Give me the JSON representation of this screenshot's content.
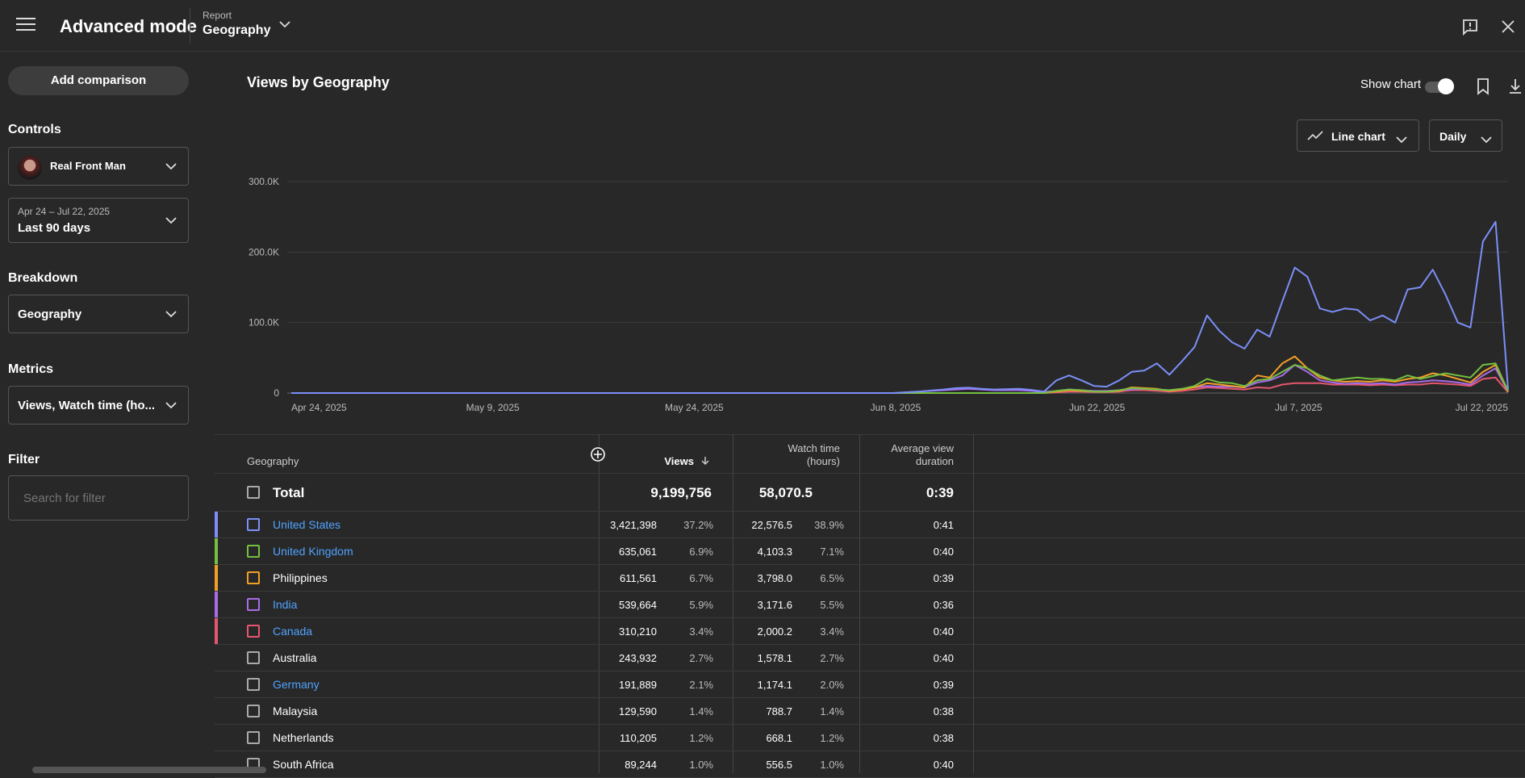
{
  "app": {
    "title": "Advanced mode",
    "report_label": "Report",
    "report_value": "Geography"
  },
  "sidebar": {
    "add_comparison": "Add comparison",
    "controls_heading": "Controls",
    "channel": "Real Front Man",
    "date_range_sub": "Apr 24 – Jul 22, 2025",
    "date_range": "Last 90 days",
    "breakdown_heading": "Breakdown",
    "breakdown": "Geography",
    "metrics_heading": "Metrics",
    "metrics": "Views, Watch time (ho...",
    "filter_heading": "Filter",
    "filter_placeholder": "Search for filter"
  },
  "chart_header": {
    "title": "Views by Geography",
    "show_chart": "Show chart",
    "chart_type": "Line chart",
    "interval": "Daily"
  },
  "chart_data": {
    "type": "line",
    "x_labels": [
      "Apr 24, 2025",
      "May 9, 2025",
      "May 24, 2025",
      "Jun 8, 2025",
      "Jun 22, 2025",
      "Jul 7, 2025",
      "Jul 22, 2025"
    ],
    "y_ticks": [
      "0",
      "100.0K",
      "200.0K",
      "300.0K"
    ],
    "ylim": [
      0,
      300000
    ],
    "series": [
      {
        "name": "United States",
        "color": "#7b8ff7",
        "values": [
          0,
          0,
          0,
          0,
          0,
          0,
          0,
          0,
          0,
          0,
          0,
          0,
          0,
          0,
          0,
          0,
          0,
          0,
          0,
          0,
          0,
          0,
          0,
          0,
          0,
          0,
          0,
          0,
          0,
          0,
          0,
          0,
          0,
          0,
          0,
          0,
          0,
          0,
          0,
          0,
          0,
          0,
          0,
          0,
          0,
          0,
          0,
          0,
          0,
          1000,
          2000,
          3500,
          5000,
          7000,
          7500,
          6000,
          5000,
          5500,
          6000,
          4500,
          2000,
          18000,
          25000,
          18000,
          10000,
          9000,
          18000,
          30000,
          32000,
          42000,
          26000,
          45000,
          65000,
          110000,
          88000,
          72000,
          63000,
          90000,
          80000,
          130000,
          178000,
          165000,
          120000,
          115000,
          120000,
          118000,
          103000,
          110000,
          100000,
          147000,
          150000,
          175000,
          140000,
          100000,
          93000,
          215000,
          243000,
          5000
        ]
      },
      {
        "name": "United Kingdom",
        "color": "#74c041",
        "values": [
          0,
          0,
          0,
          0,
          0,
          0,
          0,
          0,
          0,
          0,
          0,
          0,
          0,
          0,
          0,
          0,
          0,
          0,
          0,
          0,
          0,
          0,
          0,
          0,
          0,
          0,
          0,
          0,
          0,
          0,
          0,
          0,
          0,
          0,
          0,
          0,
          0,
          0,
          0,
          0,
          0,
          0,
          0,
          0,
          0,
          0,
          0,
          0,
          0,
          0,
          0,
          0,
          0,
          0,
          0,
          0,
          0,
          0,
          0,
          0,
          0,
          3000,
          5000,
          4000,
          2000,
          2000,
          4000,
          7000,
          6000,
          5000,
          4000,
          6000,
          10000,
          20000,
          15000,
          14000,
          10000,
          18000,
          20000,
          30000,
          40000,
          35000,
          25000,
          18000,
          20000,
          22000,
          20000,
          20000,
          18000,
          25000,
          20000,
          24000,
          28000,
          25000,
          22000,
          40000,
          42000,
          3000
        ]
      },
      {
        "name": "Philippines",
        "color": "#f29f26",
        "values": [
          0,
          0,
          0,
          0,
          0,
          0,
          0,
          0,
          0,
          0,
          0,
          0,
          0,
          0,
          0,
          0,
          0,
          0,
          0,
          0,
          0,
          0,
          0,
          0,
          0,
          0,
          0,
          0,
          0,
          0,
          0,
          0,
          0,
          0,
          0,
          0,
          0,
          0,
          0,
          0,
          0,
          0,
          0,
          0,
          0,
          0,
          0,
          0,
          0,
          0,
          0,
          0,
          0,
          0,
          0,
          0,
          0,
          0,
          0,
          0,
          0,
          2000,
          4000,
          3000,
          2000,
          2000,
          3000,
          8000,
          7000,
          6000,
          3000,
          5000,
          8000,
          14000,
          12000,
          10000,
          8000,
          25000,
          22000,
          42000,
          52000,
          35000,
          22000,
          18000,
          16000,
          17000,
          16000,
          18000,
          16000,
          20000,
          22000,
          28000,
          25000,
          20000,
          15000,
          30000,
          40000,
          2000
        ]
      },
      {
        "name": "India",
        "color": "#a86ce8",
        "values": [
          0,
          0,
          0,
          0,
          0,
          0,
          0,
          0,
          0,
          0,
          0,
          0,
          0,
          0,
          0,
          0,
          0,
          0,
          0,
          0,
          0,
          0,
          0,
          0,
          0,
          0,
          0,
          0,
          0,
          0,
          0,
          0,
          0,
          0,
          0,
          0,
          0,
          0,
          0,
          0,
          0,
          0,
          0,
          0,
          0,
          0,
          0,
          0,
          0,
          1000,
          2000,
          3000,
          4000,
          5000,
          6000,
          5000,
          4000,
          4000,
          4000,
          3000,
          1500,
          3000,
          5000,
          4000,
          3000,
          3000,
          4000,
          5000,
          6000,
          5000,
          4000,
          6000,
          8000,
          10000,
          9000,
          9000,
          8000,
          15000,
          18000,
          25000,
          40000,
          30000,
          18000,
          15000,
          13000,
          14000,
          13000,
          14000,
          12000,
          15000,
          16000,
          18000,
          17000,
          15000,
          12000,
          25000,
          35000,
          2000
        ]
      },
      {
        "name": "Canada",
        "color": "#e5566f",
        "values": [
          0,
          0,
          0,
          0,
          0,
          0,
          0,
          0,
          0,
          0,
          0,
          0,
          0,
          0,
          0,
          0,
          0,
          0,
          0,
          0,
          0,
          0,
          0,
          0,
          0,
          0,
          0,
          0,
          0,
          0,
          0,
          0,
          0,
          0,
          0,
          0,
          0,
          0,
          0,
          0,
          0,
          0,
          0,
          0,
          0,
          0,
          0,
          0,
          0,
          0,
          0,
          0,
          0,
          0,
          0,
          0,
          0,
          0,
          0,
          0,
          0,
          1000,
          2000,
          2000,
          1500,
          1500,
          2000,
          4000,
          4000,
          3000,
          2000,
          3000,
          5000,
          8000,
          7000,
          6000,
          5000,
          8000,
          7000,
          12000,
          14000,
          14000,
          14000,
          12000,
          12000,
          12000,
          11000,
          12000,
          11000,
          12000,
          12000,
          14000,
          13000,
          12000,
          10000,
          20000,
          22000,
          1000
        ]
      }
    ]
  },
  "table": {
    "headers": {
      "geography": "Geography",
      "views": "Views",
      "watch_time_1": "Watch time",
      "watch_time_2": "(hours)",
      "avg_1": "Average view",
      "avg_2": "duration"
    },
    "total": {
      "label": "Total",
      "views": "9,199,756",
      "watch_time": "58,070.5",
      "avg": "0:39"
    },
    "rows": [
      {
        "name": "United States",
        "views": "3,421,398",
        "views_pct": "37.2%",
        "watch": "22,576.5",
        "watch_pct": "38.9%",
        "avg": "0:41",
        "color": "#7b8ff7",
        "link": true
      },
      {
        "name": "United Kingdom",
        "views": "635,061",
        "views_pct": "6.9%",
        "watch": "4,103.3",
        "watch_pct": "7.1%",
        "avg": "0:40",
        "color": "#74c041",
        "link": true
      },
      {
        "name": "Philippines",
        "views": "611,561",
        "views_pct": "6.7%",
        "watch": "3,798.0",
        "watch_pct": "6.5%",
        "avg": "0:39",
        "color": "#f29f26",
        "link": false
      },
      {
        "name": "India",
        "views": "539,664",
        "views_pct": "5.9%",
        "watch": "3,171.6",
        "watch_pct": "5.5%",
        "avg": "0:36",
        "color": "#a86ce8",
        "link": true
      },
      {
        "name": "Canada",
        "views": "310,210",
        "views_pct": "3.4%",
        "watch": "2,000.2",
        "watch_pct": "3.4%",
        "avg": "0:40",
        "color": "#e5566f",
        "link": true
      },
      {
        "name": "Australia",
        "views": "243,932",
        "views_pct": "2.7%",
        "watch": "1,578.1",
        "watch_pct": "2.7%",
        "avg": "0:40",
        "color": "",
        "link": false
      },
      {
        "name": "Germany",
        "views": "191,889",
        "views_pct": "2.1%",
        "watch": "1,174.1",
        "watch_pct": "2.0%",
        "avg": "0:39",
        "color": "",
        "link": true
      },
      {
        "name": "Malaysia",
        "views": "129,590",
        "views_pct": "1.4%",
        "watch": "788.7",
        "watch_pct": "1.4%",
        "avg": "0:38",
        "color": "",
        "link": false
      },
      {
        "name": "Netherlands",
        "views": "110,205",
        "views_pct": "1.2%",
        "watch": "668.1",
        "watch_pct": "1.2%",
        "avg": "0:38",
        "color": "",
        "link": false
      },
      {
        "name": "South Africa",
        "views": "89,244",
        "views_pct": "1.0%",
        "watch": "556.5",
        "watch_pct": "1.0%",
        "avg": "0:40",
        "color": "",
        "link": false
      }
    ]
  }
}
